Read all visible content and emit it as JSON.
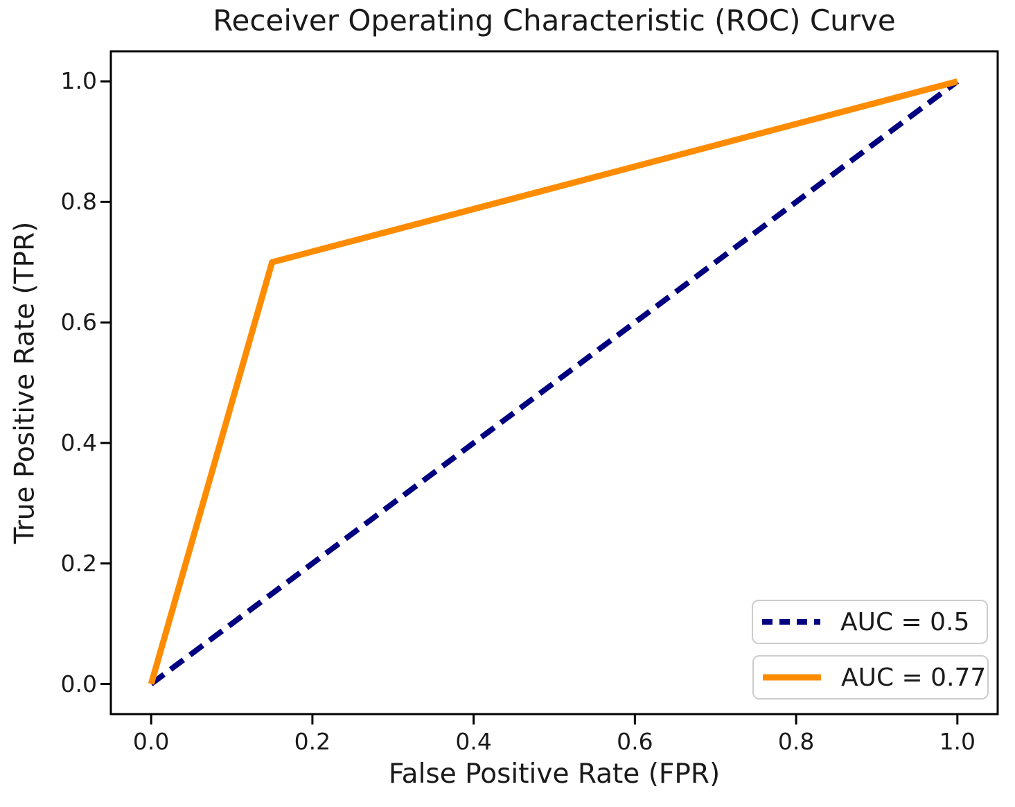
{
  "chart_data": {
    "type": "line",
    "title": "Receiver Operating Characteristic (ROC) Curve",
    "xlabel": "False Positive Rate (FPR)",
    "ylabel": "True Positive Rate (TPR)",
    "xlim": [
      -0.05,
      1.05
    ],
    "ylim": [
      -0.05,
      1.05
    ],
    "x_tick_values": [
      0.0,
      0.2,
      0.4,
      0.6,
      0.8,
      1.0
    ],
    "x_tick_labels": [
      "0.0",
      "0.2",
      "0.4",
      "0.6",
      "0.8",
      "1.0"
    ],
    "y_tick_values": [
      0.0,
      0.2,
      0.4,
      0.6,
      0.8,
      1.0
    ],
    "y_tick_labels": [
      "0.0",
      "0.2",
      "0.4",
      "0.6",
      "0.8",
      "1.0"
    ],
    "grid": false,
    "legend_position": "lower right",
    "series": [
      {
        "name": "AUC = 0.5",
        "x": [
          0.0,
          1.0
        ],
        "y": [
          0.0,
          1.0
        ],
        "color": "#000080",
        "style": "dashed",
        "width": 8
      },
      {
        "name": "AUC = 0.77",
        "x": [
          0.0,
          0.15,
          1.0
        ],
        "y": [
          0.0,
          0.7,
          1.0
        ],
        "color": "#FF8C00",
        "style": "solid",
        "width": 9
      }
    ]
  }
}
